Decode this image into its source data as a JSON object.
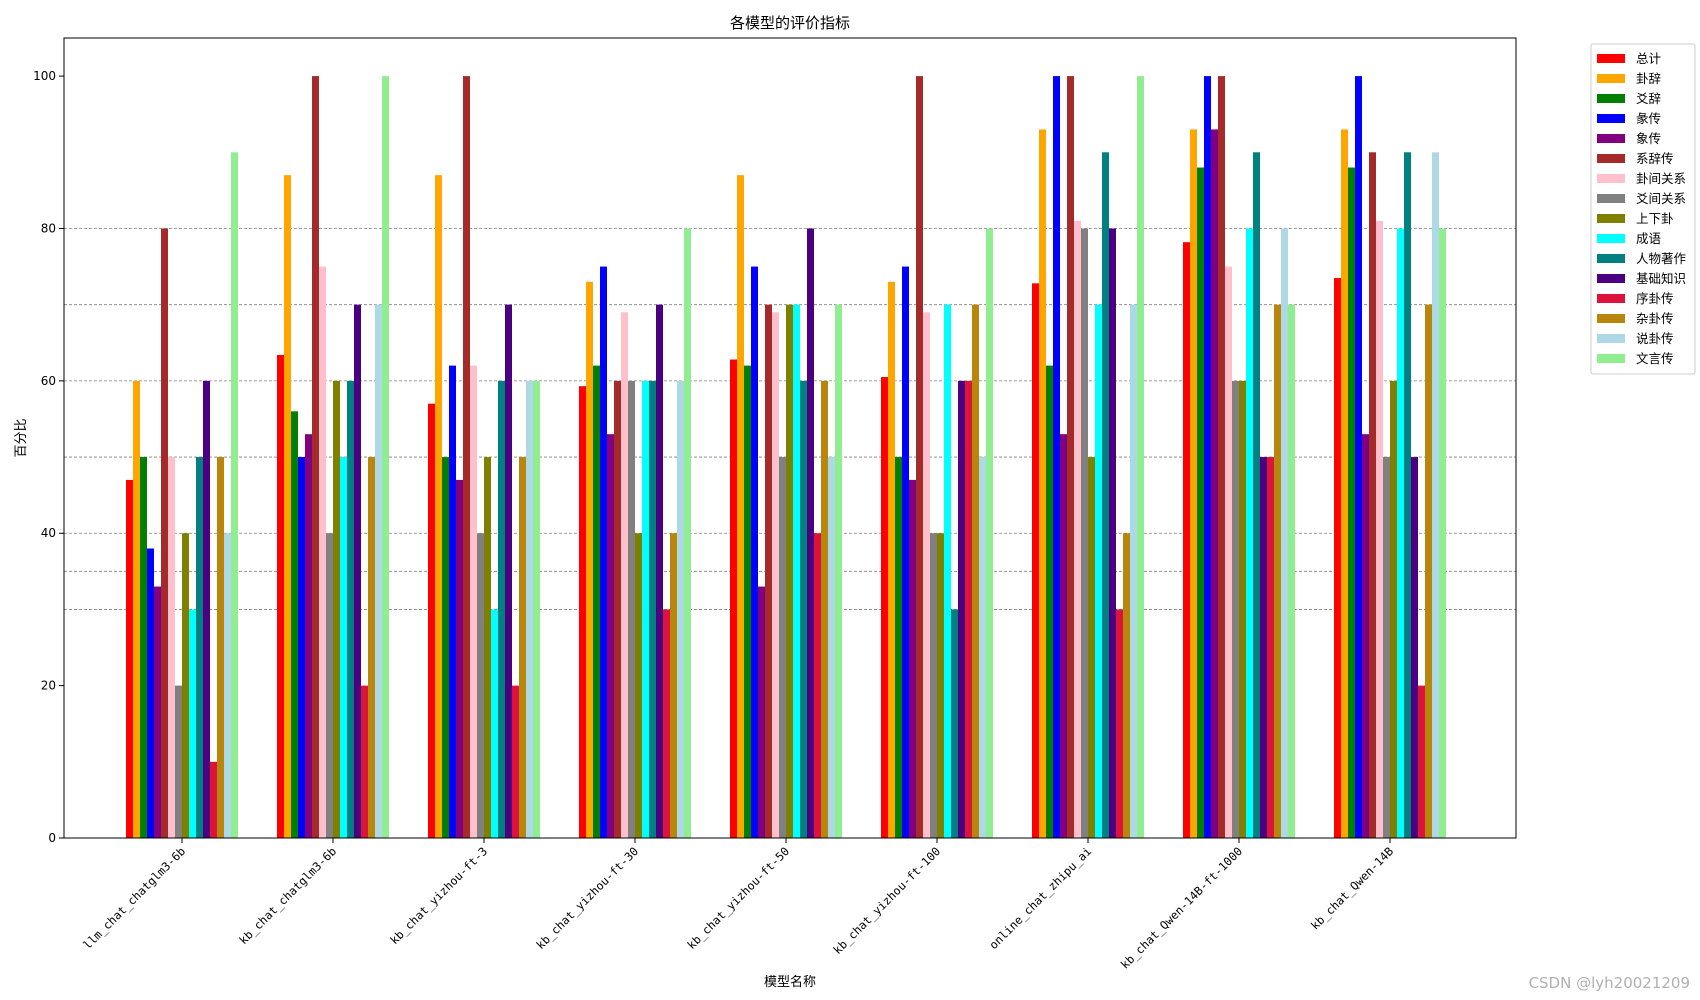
{
  "watermark": "CSDN @lyh20021209",
  "chart_data": {
    "type": "bar",
    "title": "各模型的评价指标",
    "xlabel": "模型名称",
    "ylabel": "百分比",
    "ylim": [
      0,
      105
    ],
    "yticks": [
      0,
      20,
      40,
      60,
      80,
      100
    ],
    "grid_lines_y": [
      30,
      35,
      40,
      50,
      60,
      70,
      80
    ],
    "legend_position": "outside top-right",
    "categories": [
      "llm_chat_chatglm3-6b",
      "kb_chat_chatglm3-6b",
      "kb_chat_yizhou-ft-3",
      "kb_chat_yizhou-ft-30",
      "kb_chat_yizhou-ft-50",
      "kb_chat_yizhou-ft-100",
      "online_chat_zhipu_ai",
      "kb_chat_Qwen-14B-ft-1000",
      "kb_chat_Qwen-14B"
    ],
    "series": [
      {
        "name": "总计",
        "color": "#ff0000",
        "values": [
          47,
          63.4,
          57,
          59.3,
          62.8,
          60.5,
          72.8,
          78.2,
          73.5
        ]
      },
      {
        "name": "卦辞",
        "color": "#ffa500",
        "values": [
          60,
          87,
          87,
          73,
          87,
          73,
          93,
          93,
          93
        ]
      },
      {
        "name": "爻辞",
        "color": "#008000",
        "values": [
          50,
          56,
          50,
          62,
          62,
          50,
          62,
          88,
          88
        ]
      },
      {
        "name": "彖传",
        "color": "#0000ff",
        "values": [
          38,
          50,
          62,
          75,
          75,
          75,
          100,
          100,
          100
        ]
      },
      {
        "name": "象传",
        "color": "#800080",
        "values": [
          33,
          53,
          47,
          53,
          33,
          47,
          53,
          93,
          53
        ]
      },
      {
        "name": "系辞传",
        "color": "#a52a2a",
        "values": [
          80,
          100,
          100,
          60,
          70,
          100,
          100,
          100,
          90
        ]
      },
      {
        "name": "卦间关系",
        "color": "#ffc0cb",
        "values": [
          50,
          75,
          62,
          69,
          69,
          69,
          81,
          75,
          81
        ]
      },
      {
        "name": "爻间关系",
        "color": "#808080",
        "values": [
          20,
          40,
          40,
          60,
          50,
          40,
          80,
          60,
          50
        ]
      },
      {
        "name": "上下卦",
        "color": "#808000",
        "values": [
          40,
          60,
          50,
          40,
          70,
          40,
          50,
          60,
          60
        ]
      },
      {
        "name": "成语",
        "color": "#00ffff",
        "values": [
          30,
          50,
          30,
          60,
          70,
          70,
          70,
          80,
          80
        ]
      },
      {
        "name": "人物著作",
        "color": "#008080",
        "values": [
          50,
          60,
          60,
          60,
          60,
          30,
          90,
          90,
          90
        ]
      },
      {
        "name": "基础知识",
        "color": "#4b0082",
        "values": [
          60,
          70,
          70,
          70,
          80,
          60,
          80,
          50,
          50
        ]
      },
      {
        "name": "序卦传",
        "color": "#dc143c",
        "values": [
          10,
          20,
          20,
          30,
          40,
          60,
          30,
          50,
          20
        ]
      },
      {
        "name": "杂卦传",
        "color": "#b8860b",
        "values": [
          50,
          50,
          50,
          40,
          60,
          70,
          40,
          70,
          70
        ]
      },
      {
        "name": "说卦传",
        "color": "#add8e6",
        "values": [
          40,
          70,
          60,
          60,
          50,
          50,
          70,
          80,
          90
        ]
      },
      {
        "name": "文言传",
        "color": "#90ee90",
        "values": [
          90,
          100,
          60,
          80,
          70,
          80,
          100,
          70,
          80
        ]
      }
    ]
  }
}
